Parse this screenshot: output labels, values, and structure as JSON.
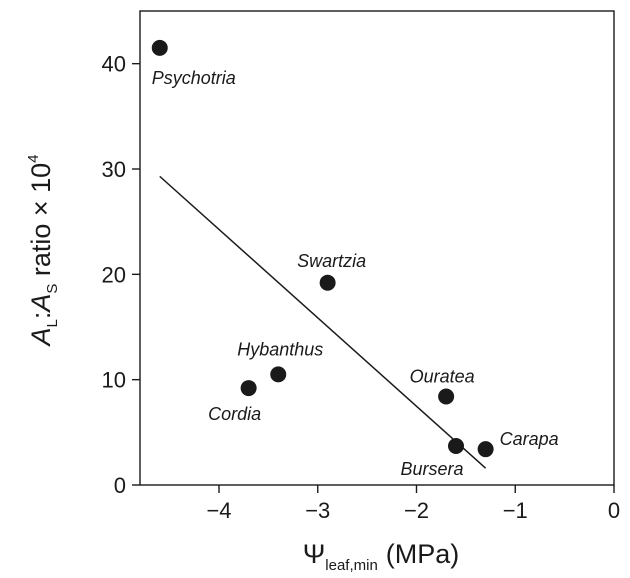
{
  "chart_data": {
    "type": "scatter",
    "x_ticks": [
      -4,
      -3,
      -2,
      -1,
      0
    ],
    "x_tick_labels": [
      "−4",
      "−3",
      "−2",
      "−1",
      "0"
    ],
    "y_ticks": [
      0,
      10,
      20,
      30,
      40
    ],
    "y_tick_labels": [
      "0",
      "10",
      "20",
      "30",
      "40"
    ],
    "xlim": [
      -4.8,
      0
    ],
    "ylim": [
      0,
      45
    ],
    "grid": false,
    "xlabel": {
      "symbol": "Ψ",
      "subscript": "leaf,min",
      "unit": "(MPa)"
    },
    "ylabel": {
      "a1": "A",
      "sub1": "L",
      "sep": ":",
      "a2": "A",
      "sub2": "S",
      "text": " ratio × 10",
      "sup": "4"
    },
    "points": [
      {
        "label": "Psychotria",
        "x": -4.6,
        "y": 41.5
      },
      {
        "label": "Swartzia",
        "x": -2.9,
        "y": 19.2
      },
      {
        "label": "Hybanthus",
        "x": -3.4,
        "y": 10.5
      },
      {
        "label": "Cordia",
        "x": -3.7,
        "y": 9.2
      },
      {
        "label": "Ouratea",
        "x": -1.7,
        "y": 8.4
      },
      {
        "label": "Bursera",
        "x": -1.6,
        "y": 3.7
      },
      {
        "label": "Carapa",
        "x": -1.3,
        "y": 3.4
      }
    ],
    "fit_line": {
      "x": [
        -4.6,
        -1.3
      ],
      "y": [
        29.3,
        1.6
      ]
    }
  }
}
